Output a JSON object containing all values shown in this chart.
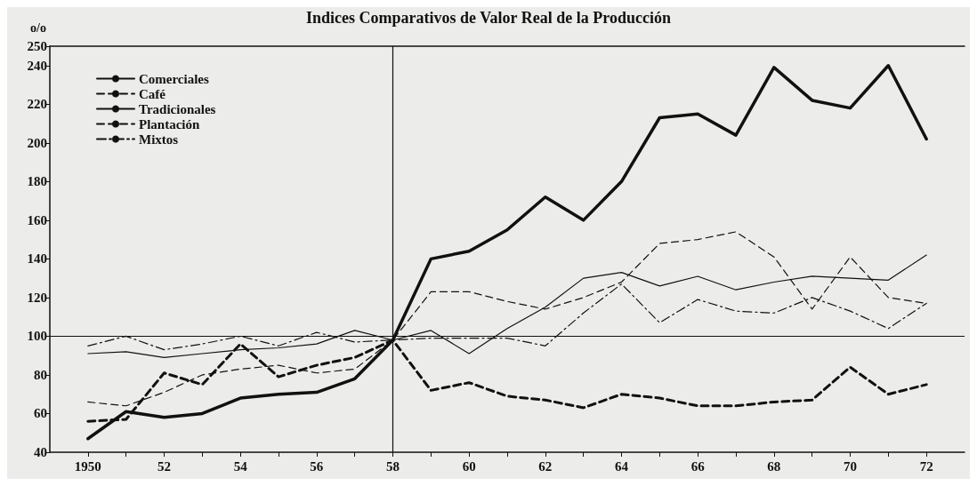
{
  "chart_data": {
    "type": "line",
    "title": "Indices Comparativos de Valor Real de la Producción",
    "ylabel": "o/o",
    "x": [
      1950,
      1951,
      1952,
      1953,
      1954,
      1955,
      1956,
      1957,
      1958,
      1959,
      1960,
      1961,
      1962,
      1963,
      1964,
      1965,
      1966,
      1967,
      1968,
      1969,
      1970,
      1971,
      1972
    ],
    "series": [
      {
        "name": "Comerciales",
        "color": "#111111",
        "line_style": "solid",
        "values": [
          47,
          61,
          58,
          60,
          68,
          70,
          71,
          78,
          98,
          140,
          144,
          155,
          172,
          160,
          180,
          213,
          215,
          204,
          239,
          222,
          218,
          240,
          202
        ]
      },
      {
        "name": "Café",
        "color": "#111111",
        "line_style": "dashed",
        "values": [
          56,
          57,
          81,
          75,
          96,
          79,
          85,
          89,
          98,
          72,
          76,
          69,
          67,
          63,
          70,
          68,
          64,
          64,
          66,
          67,
          84,
          70,
          75
        ]
      },
      {
        "name": "Tradicionales",
        "color": "#111111",
        "line_style": "solid",
        "values": [
          91,
          92,
          89,
          91,
          93,
          94,
          96,
          103,
          98,
          103,
          91,
          104,
          115,
          130,
          133,
          126,
          131,
          124,
          128,
          131,
          130,
          129,
          142
        ]
      },
      {
        "name": "Plantación",
        "color": "#111111",
        "line_style": "dashed",
        "values": [
          66,
          64,
          71,
          80,
          83,
          85,
          81,
          83,
          98,
          123,
          123,
          118,
          114,
          120,
          128,
          148,
          150,
          154,
          141,
          114,
          141,
          120,
          117
        ]
      },
      {
        "name": "Mixtos",
        "color": "#111111",
        "line_style": "dashdot",
        "values": [
          95,
          100,
          93,
          96,
          100,
          95,
          102,
          97,
          98,
          99,
          99,
          99,
          95,
          112,
          127,
          107,
          119,
          113,
          112,
          120,
          113,
          104,
          117
        ]
      }
    ],
    "xlim": [
      1949,
      1973
    ],
    "xticks": [
      {
        "value": 1950,
        "label": "1950"
      },
      {
        "value": 1951,
        "label": null
      },
      {
        "value": 1952,
        "label": "52"
      },
      {
        "value": 1953,
        "label": null
      },
      {
        "value": 1954,
        "label": "54"
      },
      {
        "value": 1955,
        "label": null
      },
      {
        "value": 1956,
        "label": "56"
      },
      {
        "value": 1957,
        "label": null
      },
      {
        "value": 1958,
        "label": "58"
      },
      {
        "value": 1959,
        "label": null
      },
      {
        "value": 1960,
        "label": "60"
      },
      {
        "value": 1961,
        "label": null
      },
      {
        "value": 1962,
        "label": "62"
      },
      {
        "value": 1963,
        "label": null
      },
      {
        "value": 1964,
        "label": "64"
      },
      {
        "value": 1965,
        "label": null
      },
      {
        "value": 1966,
        "label": "66"
      },
      {
        "value": 1967,
        "label": null
      },
      {
        "value": 1968,
        "label": "68"
      },
      {
        "value": 1969,
        "label": null
      },
      {
        "value": 1970,
        "label": "70"
      },
      {
        "value": 1971,
        "label": null
      },
      {
        "value": 1972,
        "label": "72"
      }
    ],
    "ylim": [
      40,
      250
    ],
    "yticks": [
      40,
      60,
      80,
      100,
      120,
      140,
      160,
      180,
      200,
      220,
      240,
      250
    ],
    "ref_lines": [
      {
        "axis": "y",
        "value": 100
      },
      {
        "axis": "x",
        "value": 1958
      }
    ],
    "legend": "top left",
    "marker": "none",
    "grid": false
  }
}
